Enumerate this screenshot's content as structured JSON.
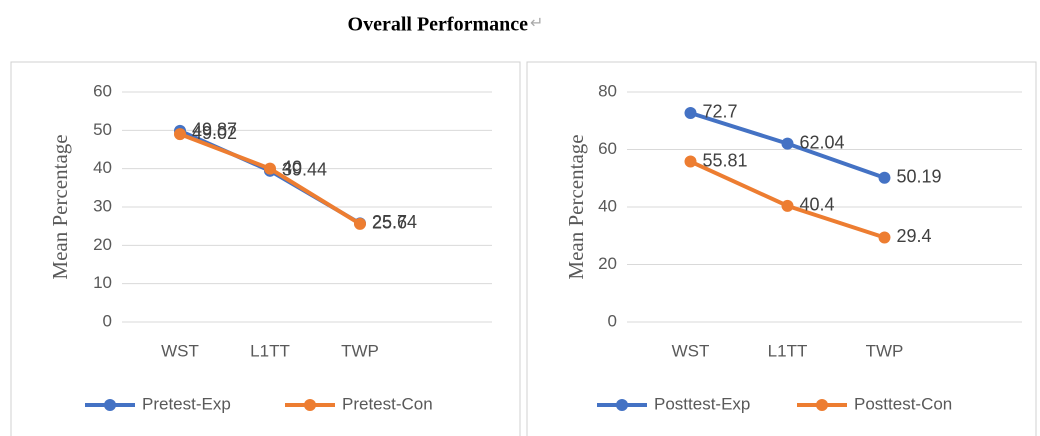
{
  "title": "Overall Performance",
  "title_mark": "↵",
  "chart_data": [
    {
      "type": "line",
      "ylabel": "Mean Percentage",
      "categories": [
        "WST",
        "L1TT",
        "TWP"
      ],
      "ylim": [
        0,
        60
      ],
      "yticks": [
        0,
        10,
        20,
        30,
        40,
        50,
        60
      ],
      "grid": true,
      "legend": "bottom",
      "series": [
        {
          "name": "Pretest-Exp",
          "color": "#4472c4",
          "values": [
            49.87,
            39.44,
            25.74
          ]
        },
        {
          "name": "Pretest-Con",
          "color": "#ed7d31",
          "values": [
            49.02,
            40,
            25.6
          ]
        }
      ]
    },
    {
      "type": "line",
      "ylabel": "Mean Percentage",
      "categories": [
        "WST",
        "L1TT",
        "TWP"
      ],
      "ylim": [
        0,
        80
      ],
      "yticks": [
        0,
        20,
        40,
        60,
        80
      ],
      "grid": true,
      "legend": "bottom",
      "series": [
        {
          "name": "Posttest-Exp",
          "color": "#4472c4",
          "values": [
            72.7,
            62.04,
            50.19
          ]
        },
        {
          "name": "Posttest-Con",
          "color": "#ed7d31",
          "values": [
            55.81,
            40.4,
            29.4
          ]
        }
      ]
    }
  ]
}
